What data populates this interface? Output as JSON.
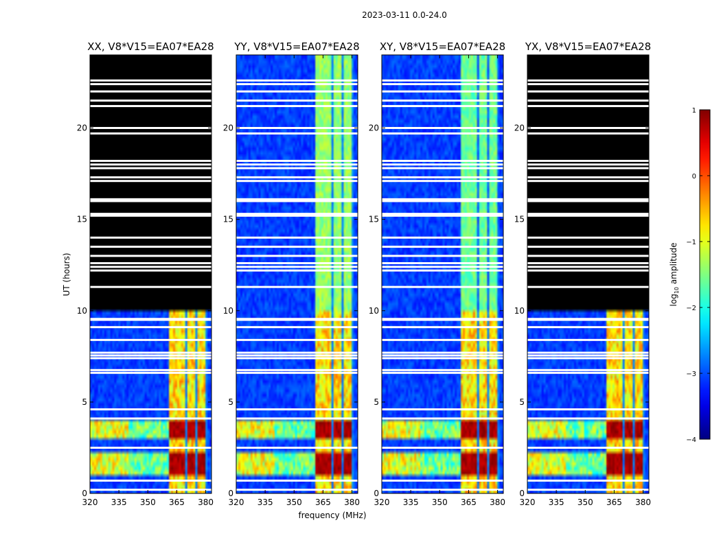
{
  "suptitle": "2023-03-11 0.0-24.0",
  "chart_data": {
    "type": "heatmap",
    "panels": [
      {
        "title": "XX, V8*V15=EA07*EA28",
        "pol": "XX"
      },
      {
        "title": "YY, V8*V15=EA07*EA28",
        "pol": "YY"
      },
      {
        "title": "XY, V8*V15=EA07*EA28",
        "pol": "XY"
      },
      {
        "title": "YX, V8*V15=EA07*EA28",
        "pol": "YX"
      }
    ],
    "xlabel": "frequency (MHz)",
    "ylabel": "UT (hours)",
    "xlim": [
      320,
      383
    ],
    "ylim": [
      0,
      24
    ],
    "xticks": [
      320,
      335,
      350,
      365,
      380
    ],
    "yticks": [
      0,
      5,
      10,
      15,
      20
    ],
    "colorbar": {
      "label_prefix": "log",
      "label_sub": "10",
      "label_suffix": " amplitude",
      "range": [
        -4,
        1
      ],
      "ticks": [
        -4,
        -3,
        -2,
        -1,
        0,
        1
      ],
      "tick_labels": [
        "−4",
        "−3",
        "−2",
        "−1",
        "0",
        "1"
      ],
      "colormap": "jet"
    },
    "no_data_hours": {
      "XX": [
        10,
        24
      ],
      "YX": [
        10,
        24
      ]
    },
    "rfi_band_mhz": [
      360.5,
      381
    ],
    "strong_rfi_hours": [
      [
        1.1,
        2.2
      ],
      [
        2.9,
        3.9
      ]
    ],
    "flagged_rows_hours": [
      0.2,
      0.7,
      2.5,
      4.1,
      4.6,
      6.6,
      6.75,
      7.4,
      7.55,
      7.7,
      8.4,
      9.1,
      9.5,
      9.55,
      11.3,
      12.2,
      12.4,
      12.6,
      13.0,
      13.5,
      14.0,
      15.2,
      15.3,
      16.0,
      16.1,
      17.1,
      17.3,
      17.8,
      18.0,
      18.2,
      19.7,
      20.0,
      21.2,
      21.5,
      22.0,
      22.4,
      22.6
    ]
  },
  "colors": {
    "flag": "#ffffff",
    "no_data": "#000000",
    "background": "#ffffff"
  }
}
